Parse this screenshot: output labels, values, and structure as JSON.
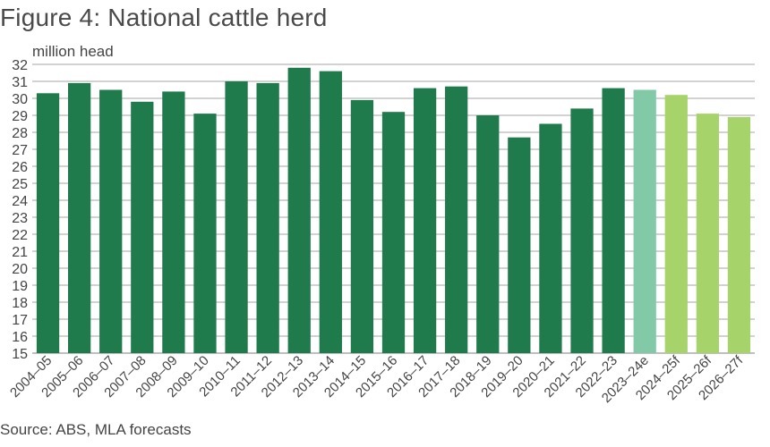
{
  "chart_data": {
    "type": "bar",
    "title": "Figure 4: National cattle herd",
    "ylabel": "million head",
    "source": "Source: ABS, MLA forecasts",
    "ylim": [
      15,
      32
    ],
    "yticks": [
      15,
      16,
      17,
      18,
      19,
      20,
      21,
      22,
      23,
      24,
      25,
      26,
      27,
      28,
      29,
      30,
      31,
      32
    ],
    "grid": true,
    "categories": [
      "2004–05",
      "2005–06",
      "2006–07",
      "2007–08",
      "2008–09",
      "2009–10",
      "2010–11",
      "2011–12",
      "2012–13",
      "2013–14",
      "2014–15",
      "2015–16",
      "2016–17",
      "2017–18",
      "2018–19",
      "2019–20",
      "2020–21",
      "2021–22",
      "2022–23",
      "2023–24e",
      "2024–25f",
      "2025–26f",
      "2026–27f"
    ],
    "values": [
      30.3,
      30.9,
      30.5,
      29.8,
      30.4,
      29.1,
      31.0,
      30.9,
      31.8,
      31.6,
      29.9,
      29.2,
      30.6,
      30.7,
      29.0,
      27.7,
      28.5,
      29.4,
      30.6,
      30.5,
      30.2,
      29.1,
      28.9
    ],
    "colors": {
      "actual": "#1f7a4c",
      "estimate": "#82c9a8",
      "forecast": "#a6d46a",
      "grid": "#a6a6a6",
      "axis": "#7f7f7f"
    }
  }
}
